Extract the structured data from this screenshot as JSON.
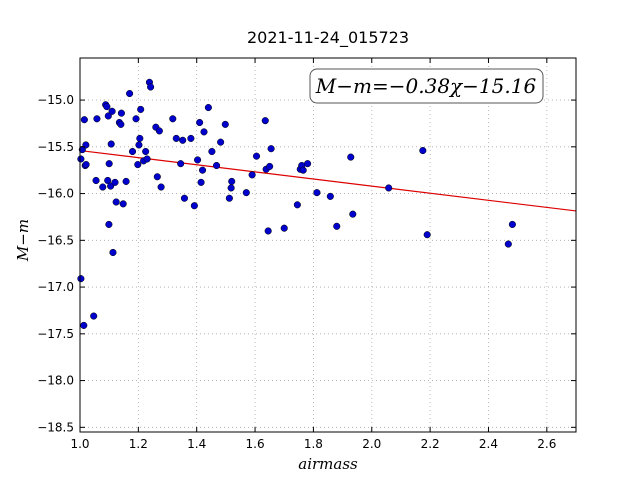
{
  "chart_data": {
    "type": "scatter",
    "title": "2021-11-24_015723",
    "xlabel": "airmass",
    "ylabel": "M−m",
    "annotation": "M−m=−0.38χ−15.16",
    "xlim": [
      1.0,
      2.7
    ],
    "ylim": [
      -18.55,
      -14.55
    ],
    "xticks": [
      1.0,
      1.2,
      1.4,
      1.6,
      1.8,
      2.0,
      2.2,
      2.4,
      2.6
    ],
    "xtick_labels": [
      "1.0",
      "1.2",
      "1.4",
      "1.6",
      "1.8",
      "2.0",
      "2.2",
      "2.4",
      "2.6"
    ],
    "yticks": [
      -15.0,
      -15.5,
      -16.0,
      -16.5,
      -17.0,
      -17.5,
      -18.0,
      -18.5
    ],
    "ytick_labels": [
      "−15.0",
      "−15.5",
      "−16.0",
      "−16.5",
      "−17.0",
      "−17.5",
      "−18.0",
      "−18.5"
    ],
    "grid": true,
    "fit_line": {
      "slope": -0.38,
      "intercept": -15.16
    },
    "colors": {
      "points": "#0000cc",
      "fit": "#dd0000",
      "grid": "#aaaaaa",
      "axes": "#000000"
    },
    "series": [
      {
        "points": [
          [
            1.003,
            -15.63
          ],
          [
            1.008,
            -15.53
          ],
          [
            1.003,
            -16.91
          ],
          [
            1.013,
            -17.41
          ],
          [
            1.015,
            -15.21
          ],
          [
            1.018,
            -15.7
          ],
          [
            1.02,
            -15.48
          ],
          [
            1.021,
            -15.69
          ],
          [
            1.047,
            -17.31
          ],
          [
            1.055,
            -15.86
          ],
          [
            1.058,
            -15.2
          ],
          [
            1.078,
            -15.93
          ],
          [
            1.088,
            -15.05
          ],
          [
            1.092,
            -15.07
          ],
          [
            1.095,
            -15.86
          ],
          [
            1.097,
            -15.17
          ],
          [
            1.099,
            -16.33
          ],
          [
            1.1,
            -15.68
          ],
          [
            1.105,
            -15.92
          ],
          [
            1.107,
            -15.47
          ],
          [
            1.11,
            -15.12
          ],
          [
            1.113,
            -16.63
          ],
          [
            1.12,
            -15.88
          ],
          [
            1.124,
            -16.09
          ],
          [
            1.135,
            -15.24
          ],
          [
            1.14,
            -15.26
          ],
          [
            1.142,
            -15.14
          ],
          [
            1.148,
            -16.11
          ],
          [
            1.158,
            -15.87
          ],
          [
            1.17,
            -14.93
          ],
          [
            1.18,
            -15.55
          ],
          [
            1.192,
            -15.2
          ],
          [
            1.198,
            -15.69
          ],
          [
            1.202,
            -15.48
          ],
          [
            1.205,
            -15.41
          ],
          [
            1.208,
            -15.1
          ],
          [
            1.218,
            -15.65
          ],
          [
            1.225,
            -15.55
          ],
          [
            1.23,
            -15.63
          ],
          [
            1.238,
            -14.81
          ],
          [
            1.242,
            -14.86
          ],
          [
            1.26,
            -15.29
          ],
          [
            1.265,
            -15.82
          ],
          [
            1.272,
            -15.33
          ],
          [
            1.278,
            -15.93
          ],
          [
            1.318,
            -15.2
          ],
          [
            1.33,
            -15.41
          ],
          [
            1.345,
            -15.68
          ],
          [
            1.352,
            -15.43
          ],
          [
            1.358,
            -16.05
          ],
          [
            1.38,
            -15.41
          ],
          [
            1.392,
            -16.13
          ],
          [
            1.403,
            -15.64
          ],
          [
            1.41,
            -15.24
          ],
          [
            1.415,
            -15.88
          ],
          [
            1.42,
            -15.75
          ],
          [
            1.425,
            -15.34
          ],
          [
            1.44,
            -15.08
          ],
          [
            1.452,
            -15.55
          ],
          [
            1.468,
            -15.7
          ],
          [
            1.482,
            -15.45
          ],
          [
            1.498,
            -15.26
          ],
          [
            1.512,
            -16.05
          ],
          [
            1.518,
            -15.94
          ],
          [
            1.52,
            -15.87
          ],
          [
            1.57,
            -15.99
          ],
          [
            1.59,
            -15.8
          ],
          [
            1.605,
            -15.6
          ],
          [
            1.635,
            -15.22
          ],
          [
            1.638,
            -15.74
          ],
          [
            1.645,
            -16.4
          ],
          [
            1.65,
            -15.71
          ],
          [
            1.655,
            -15.52
          ],
          [
            1.7,
            -16.37
          ],
          [
            1.745,
            -16.12
          ],
          [
            1.755,
            -15.74
          ],
          [
            1.76,
            -15.7
          ],
          [
            1.765,
            -15.75
          ],
          [
            1.78,
            -15.68
          ],
          [
            1.812,
            -15.99
          ],
          [
            1.858,
            -16.03
          ],
          [
            1.88,
            -16.35
          ],
          [
            1.928,
            -15.61
          ],
          [
            1.935,
            -16.22
          ],
          [
            2.058,
            -15.94
          ],
          [
            2.175,
            -15.54
          ],
          [
            2.19,
            -16.44
          ],
          [
            2.468,
            -16.54
          ],
          [
            2.482,
            -16.33
          ]
        ]
      }
    ]
  }
}
